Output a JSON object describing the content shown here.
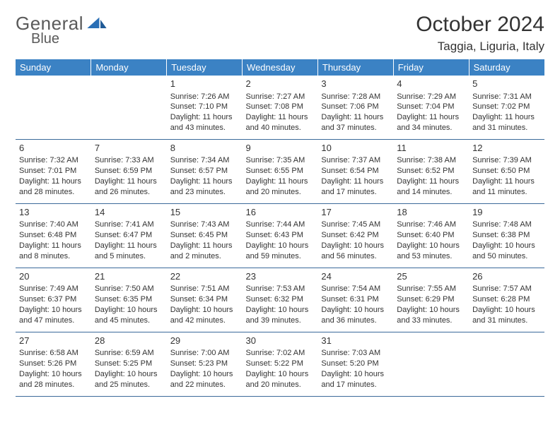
{
  "logo": {
    "text1": "General",
    "text2": "Blue"
  },
  "title": "October 2024",
  "location": "Taggia, Liguria, Italy",
  "colors": {
    "header_bg": "#3b82c4",
    "header_text": "#ffffff",
    "rule": "#3b6a9a",
    "body_text": "#333333",
    "logo_gray": "#5a5a5a",
    "logo_blue": "#2a6fb5"
  },
  "day_headers": [
    "Sunday",
    "Monday",
    "Tuesday",
    "Wednesday",
    "Thursday",
    "Friday",
    "Saturday"
  ],
  "weeks": [
    [
      null,
      null,
      {
        "n": "1",
        "sr": "Sunrise: 7:26 AM",
        "ss": "Sunset: 7:10 PM",
        "d1": "Daylight: 11 hours",
        "d2": "and 43 minutes."
      },
      {
        "n": "2",
        "sr": "Sunrise: 7:27 AM",
        "ss": "Sunset: 7:08 PM",
        "d1": "Daylight: 11 hours",
        "d2": "and 40 minutes."
      },
      {
        "n": "3",
        "sr": "Sunrise: 7:28 AM",
        "ss": "Sunset: 7:06 PM",
        "d1": "Daylight: 11 hours",
        "d2": "and 37 minutes."
      },
      {
        "n": "4",
        "sr": "Sunrise: 7:29 AM",
        "ss": "Sunset: 7:04 PM",
        "d1": "Daylight: 11 hours",
        "d2": "and 34 minutes."
      },
      {
        "n": "5",
        "sr": "Sunrise: 7:31 AM",
        "ss": "Sunset: 7:02 PM",
        "d1": "Daylight: 11 hours",
        "d2": "and 31 minutes."
      }
    ],
    [
      {
        "n": "6",
        "sr": "Sunrise: 7:32 AM",
        "ss": "Sunset: 7:01 PM",
        "d1": "Daylight: 11 hours",
        "d2": "and 28 minutes."
      },
      {
        "n": "7",
        "sr": "Sunrise: 7:33 AM",
        "ss": "Sunset: 6:59 PM",
        "d1": "Daylight: 11 hours",
        "d2": "and 26 minutes."
      },
      {
        "n": "8",
        "sr": "Sunrise: 7:34 AM",
        "ss": "Sunset: 6:57 PM",
        "d1": "Daylight: 11 hours",
        "d2": "and 23 minutes."
      },
      {
        "n": "9",
        "sr": "Sunrise: 7:35 AM",
        "ss": "Sunset: 6:55 PM",
        "d1": "Daylight: 11 hours",
        "d2": "and 20 minutes."
      },
      {
        "n": "10",
        "sr": "Sunrise: 7:37 AM",
        "ss": "Sunset: 6:54 PM",
        "d1": "Daylight: 11 hours",
        "d2": "and 17 minutes."
      },
      {
        "n": "11",
        "sr": "Sunrise: 7:38 AM",
        "ss": "Sunset: 6:52 PM",
        "d1": "Daylight: 11 hours",
        "d2": "and 14 minutes."
      },
      {
        "n": "12",
        "sr": "Sunrise: 7:39 AM",
        "ss": "Sunset: 6:50 PM",
        "d1": "Daylight: 11 hours",
        "d2": "and 11 minutes."
      }
    ],
    [
      {
        "n": "13",
        "sr": "Sunrise: 7:40 AM",
        "ss": "Sunset: 6:48 PM",
        "d1": "Daylight: 11 hours",
        "d2": "and 8 minutes."
      },
      {
        "n": "14",
        "sr": "Sunrise: 7:41 AM",
        "ss": "Sunset: 6:47 PM",
        "d1": "Daylight: 11 hours",
        "d2": "and 5 minutes."
      },
      {
        "n": "15",
        "sr": "Sunrise: 7:43 AM",
        "ss": "Sunset: 6:45 PM",
        "d1": "Daylight: 11 hours",
        "d2": "and 2 minutes."
      },
      {
        "n": "16",
        "sr": "Sunrise: 7:44 AM",
        "ss": "Sunset: 6:43 PM",
        "d1": "Daylight: 10 hours",
        "d2": "and 59 minutes."
      },
      {
        "n": "17",
        "sr": "Sunrise: 7:45 AM",
        "ss": "Sunset: 6:42 PM",
        "d1": "Daylight: 10 hours",
        "d2": "and 56 minutes."
      },
      {
        "n": "18",
        "sr": "Sunrise: 7:46 AM",
        "ss": "Sunset: 6:40 PM",
        "d1": "Daylight: 10 hours",
        "d2": "and 53 minutes."
      },
      {
        "n": "19",
        "sr": "Sunrise: 7:48 AM",
        "ss": "Sunset: 6:38 PM",
        "d1": "Daylight: 10 hours",
        "d2": "and 50 minutes."
      }
    ],
    [
      {
        "n": "20",
        "sr": "Sunrise: 7:49 AM",
        "ss": "Sunset: 6:37 PM",
        "d1": "Daylight: 10 hours",
        "d2": "and 47 minutes."
      },
      {
        "n": "21",
        "sr": "Sunrise: 7:50 AM",
        "ss": "Sunset: 6:35 PM",
        "d1": "Daylight: 10 hours",
        "d2": "and 45 minutes."
      },
      {
        "n": "22",
        "sr": "Sunrise: 7:51 AM",
        "ss": "Sunset: 6:34 PM",
        "d1": "Daylight: 10 hours",
        "d2": "and 42 minutes."
      },
      {
        "n": "23",
        "sr": "Sunrise: 7:53 AM",
        "ss": "Sunset: 6:32 PM",
        "d1": "Daylight: 10 hours",
        "d2": "and 39 minutes."
      },
      {
        "n": "24",
        "sr": "Sunrise: 7:54 AM",
        "ss": "Sunset: 6:31 PM",
        "d1": "Daylight: 10 hours",
        "d2": "and 36 minutes."
      },
      {
        "n": "25",
        "sr": "Sunrise: 7:55 AM",
        "ss": "Sunset: 6:29 PM",
        "d1": "Daylight: 10 hours",
        "d2": "and 33 minutes."
      },
      {
        "n": "26",
        "sr": "Sunrise: 7:57 AM",
        "ss": "Sunset: 6:28 PM",
        "d1": "Daylight: 10 hours",
        "d2": "and 31 minutes."
      }
    ],
    [
      {
        "n": "27",
        "sr": "Sunrise: 6:58 AM",
        "ss": "Sunset: 5:26 PM",
        "d1": "Daylight: 10 hours",
        "d2": "and 28 minutes."
      },
      {
        "n": "28",
        "sr": "Sunrise: 6:59 AM",
        "ss": "Sunset: 5:25 PM",
        "d1": "Daylight: 10 hours",
        "d2": "and 25 minutes."
      },
      {
        "n": "29",
        "sr": "Sunrise: 7:00 AM",
        "ss": "Sunset: 5:23 PM",
        "d1": "Daylight: 10 hours",
        "d2": "and 22 minutes."
      },
      {
        "n": "30",
        "sr": "Sunrise: 7:02 AM",
        "ss": "Sunset: 5:22 PM",
        "d1": "Daylight: 10 hours",
        "d2": "and 20 minutes."
      },
      {
        "n": "31",
        "sr": "Sunrise: 7:03 AM",
        "ss": "Sunset: 5:20 PM",
        "d1": "Daylight: 10 hours",
        "d2": "and 17 minutes."
      },
      null,
      null
    ]
  ]
}
